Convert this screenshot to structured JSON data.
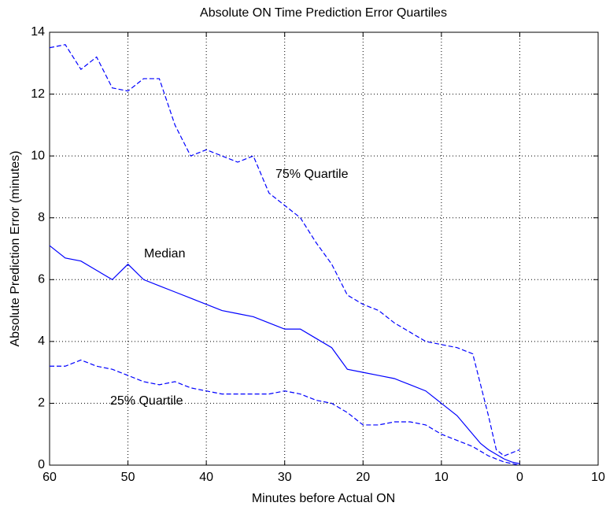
{
  "chart_data": {
    "type": "line",
    "title": "Absolute ON Time Prediction Error Quartiles",
    "xlabel": "Minutes before Actual ON",
    "ylabel": "Absolute Prediction Error (minutes)",
    "x": [
      60,
      58,
      56,
      54,
      52,
      50,
      48,
      46,
      44,
      42,
      40,
      38,
      36,
      34,
      32,
      30,
      28,
      26,
      24,
      22,
      20,
      18,
      16,
      14,
      12,
      10,
      8,
      6,
      5,
      4,
      3,
      2,
      1,
      0
    ],
    "series": [
      {
        "name": "75% Quartile",
        "color": "#0000ff",
        "linestyle": "dashed",
        "values": [
          13.5,
          13.6,
          12.8,
          13.2,
          12.2,
          12.1,
          12.5,
          12.5,
          11,
          10,
          10.2,
          10,
          9.8,
          10,
          8.8,
          8.4,
          8,
          7.2,
          6.5,
          5.5,
          5.2,
          5,
          4.6,
          4.3,
          4,
          3.9,
          3.8,
          3.6,
          2.6,
          1.6,
          0.5,
          0.3,
          0.4,
          0.5
        ]
      },
      {
        "name": "Median",
        "color": "#0000ff",
        "linestyle": "solid",
        "values": [
          7.1,
          6.7,
          6.6,
          6.3,
          6.0,
          6.5,
          6.0,
          5.8,
          5.6,
          5.4,
          5.2,
          5.0,
          4.9,
          4.8,
          4.6,
          4.4,
          4.4,
          4.1,
          3.8,
          3.1,
          3.0,
          2.9,
          2.8,
          2.6,
          2.4,
          2.0,
          1.6,
          1.0,
          0.7,
          0.5,
          0.35,
          0.2,
          0.1,
          0.05
        ]
      },
      {
        "name": "25% Quartile",
        "color": "#0000ff",
        "linestyle": "dashed",
        "values": [
          3.2,
          3.2,
          3.4,
          3.2,
          3.1,
          2.9,
          2.7,
          2.6,
          2.7,
          2.5,
          2.4,
          2.3,
          2.3,
          2.3,
          2.3,
          2.4,
          2.3,
          2.1,
          2.0,
          1.7,
          1.3,
          1.3,
          1.4,
          1.4,
          1.3,
          1.0,
          0.8,
          0.6,
          0.45,
          0.3,
          0.2,
          0.1,
          0.05,
          0
        ]
      }
    ],
    "xlim": [
      60,
      -10
    ],
    "xticks": [
      60,
      50,
      40,
      30,
      20,
      10,
      0,
      {
        "value": -10,
        "label": "10"
      }
    ],
    "ylim": [
      0,
      14
    ],
    "yticks": [
      0,
      2,
      4,
      6,
      8,
      10,
      12,
      14
    ],
    "grid": true
  }
}
